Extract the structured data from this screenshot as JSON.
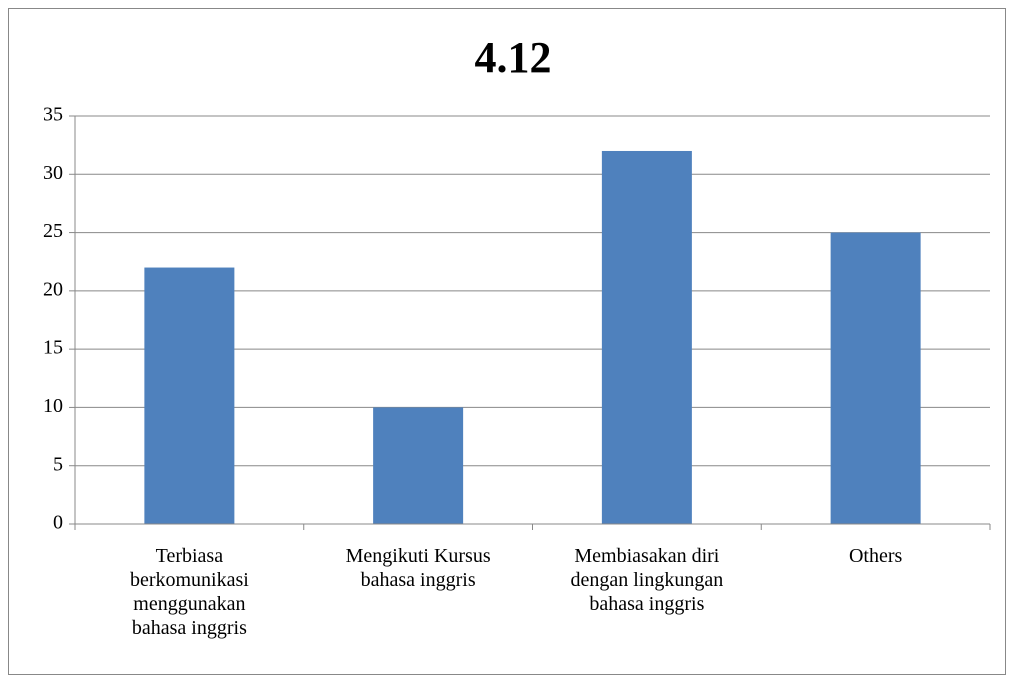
{
  "chart_data": {
    "type": "bar",
    "title": "4.12",
    "categories": [
      "Terbiasa\nberkomunikasi\nmenggunakan\nbahasa inggris",
      "Mengikuti Kursus\nbahasa inggris",
      "Membiasakan diri\ndengan lingkungan\nbahasa inggris",
      "Others"
    ],
    "values": [
      22,
      10,
      32,
      25
    ],
    "color": "#4f81bd",
    "ylim": [
      0,
      35
    ],
    "yticks": [
      0,
      5,
      10,
      15,
      20,
      25,
      30,
      35
    ],
    "grid": true
  }
}
